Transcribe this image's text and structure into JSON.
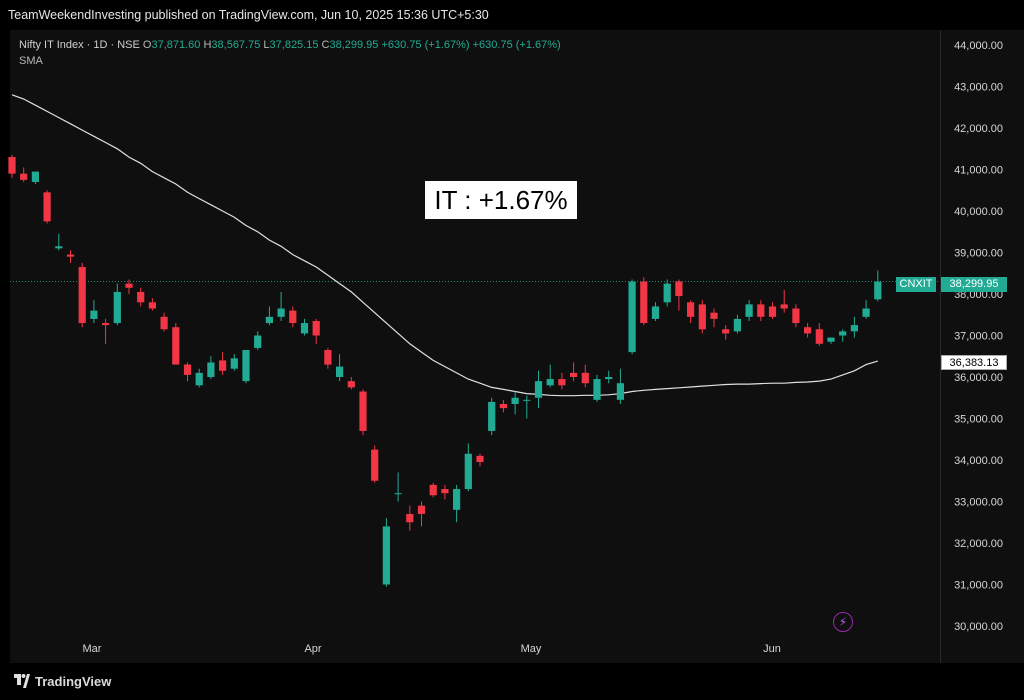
{
  "header": {
    "published": "TeamWeekendInvesting published on TradingView.com, Jun 10, 2025 15:36 UTC+5:30"
  },
  "legend": {
    "symbol": "Nifty IT Index · 1D · NSE",
    "o_label": "O",
    "o": "37,871.60",
    "h_label": "H",
    "h": "38,567.75",
    "l_label": "L",
    "l": "37,825.15",
    "c_label": "C",
    "c": "38,299.95",
    "change": "+630.75 (+1.67%)",
    "change2": "+630.75 (+1.67%)",
    "indicator": "SMA"
  },
  "callout": "IT : +1.67%",
  "price_tags": {
    "symbol": "CNXIT",
    "last": "38,299.95",
    "sma": "36,383.13"
  },
  "footer": {
    "brand": "TradingView"
  },
  "colors": {
    "up": "#22ab94",
    "down": "#f23645",
    "sma": "#e0e0e0",
    "bg": "#0f0f0f"
  },
  "chart_data": {
    "type": "candlestick",
    "y_ticks": [
      30000,
      31000,
      32000,
      33000,
      34000,
      35000,
      36000,
      37000,
      38000,
      39000,
      40000,
      41000,
      42000,
      43000,
      44000
    ],
    "y_tick_labels": [
      "30,000.00",
      "31,000.00",
      "32,000.00",
      "33,000.00",
      "34,000.00",
      "35,000.00",
      "36,000.00",
      "37,000.00",
      "38,000.00",
      "39,000.00",
      "40,000.00",
      "41,000.00",
      "42,000.00",
      "43,000.00",
      "44,000.00"
    ],
    "x_labels": [
      "Mar",
      "Apr",
      "May",
      "Jun"
    ],
    "last_price": 38299.95,
    "candles": [
      {
        "o": 41300,
        "h": 41350,
        "c": 40900,
        "l": 40800
      },
      {
        "o": 40900,
        "h": 41050,
        "c": 40750,
        "l": 40700
      },
      {
        "o": 40700,
        "h": 40850,
        "c": 40950,
        "l": 40650
      },
      {
        "o": 40450,
        "h": 40500,
        "c": 39750,
        "l": 39700
      },
      {
        "o": 39100,
        "h": 39450,
        "c": 39150,
        "l": 39050
      },
      {
        "o": 38950,
        "h": 39050,
        "c": 38900,
        "l": 38750
      },
      {
        "o": 38650,
        "h": 38750,
        "c": 37300,
        "l": 37200
      },
      {
        "o": 37400,
        "h": 37850,
        "c": 37600,
        "l": 37300
      },
      {
        "o": 37300,
        "h": 37400,
        "c": 37250,
        "l": 36800
      },
      {
        "o": 37300,
        "h": 38250,
        "c": 38050,
        "l": 37250
      },
      {
        "o": 38250,
        "h": 38350,
        "c": 38150,
        "l": 38000
      },
      {
        "o": 38050,
        "h": 38150,
        "c": 37800,
        "l": 37700
      },
      {
        "o": 37800,
        "h": 37900,
        "c": 37650,
        "l": 37600
      },
      {
        "o": 37450,
        "h": 37550,
        "c": 37150,
        "l": 37100
      },
      {
        "o": 37200,
        "h": 37300,
        "c": 36300,
        "l": 36300
      },
      {
        "o": 36300,
        "h": 36350,
        "c": 36050,
        "l": 35900
      },
      {
        "o": 35800,
        "h": 36200,
        "c": 36100,
        "l": 35750
      },
      {
        "o": 36000,
        "h": 36500,
        "c": 36350,
        "l": 35950
      },
      {
        "o": 36400,
        "h": 36600,
        "c": 36150,
        "l": 36050
      },
      {
        "o": 36200,
        "h": 36550,
        "c": 36450,
        "l": 36150
      },
      {
        "o": 35900,
        "h": 36600,
        "c": 36650,
        "l": 35850
      },
      {
        "o": 36700,
        "h": 37100,
        "c": 37000,
        "l": 36650
      },
      {
        "o": 37300,
        "h": 37700,
        "c": 37450,
        "l": 37250
      },
      {
        "o": 37450,
        "h": 38050,
        "c": 37650,
        "l": 37350
      },
      {
        "o": 37600,
        "h": 37700,
        "c": 37300,
        "l": 37200
      },
      {
        "o": 37050,
        "h": 37400,
        "c": 37300,
        "l": 37000
      },
      {
        "o": 37350,
        "h": 37400,
        "c": 37000,
        "l": 36800
      },
      {
        "o": 36650,
        "h": 36700,
        "c": 36300,
        "l": 36200
      },
      {
        "o": 36000,
        "h": 36550,
        "c": 36250,
        "l": 35900
      },
      {
        "o": 35900,
        "h": 36000,
        "c": 35750,
        "l": 35700
      },
      {
        "o": 35650,
        "h": 35700,
        "c": 34700,
        "l": 34600
      },
      {
        "o": 34250,
        "h": 34350,
        "c": 33500,
        "l": 33450
      },
      {
        "o": 31000,
        "h": 32600,
        "c": 32400,
        "l": 30950
      },
      {
        "o": 33200,
        "h": 33700,
        "c": 33200,
        "l": 33000
      },
      {
        "o": 32700,
        "h": 32900,
        "c": 32500,
        "l": 32300
      },
      {
        "o": 32900,
        "h": 33000,
        "c": 32700,
        "l": 32400
      },
      {
        "o": 33400,
        "h": 33450,
        "c": 33150,
        "l": 33100
      },
      {
        "o": 33300,
        "h": 33400,
        "c": 33200,
        "l": 33050
      },
      {
        "o": 32800,
        "h": 33400,
        "c": 33300,
        "l": 32500
      },
      {
        "o": 33300,
        "h": 34400,
        "c": 34150,
        "l": 33250
      },
      {
        "o": 34100,
        "h": 34150,
        "c": 33950,
        "l": 33850
      },
      {
        "o": 34700,
        "h": 35500,
        "c": 35400,
        "l": 34600
      },
      {
        "o": 35350,
        "h": 35450,
        "c": 35250,
        "l": 35150
      },
      {
        "o": 35350,
        "h": 35650,
        "c": 35500,
        "l": 35100
      },
      {
        "o": 35450,
        "h": 35550,
        "c": 35450,
        "l": 35000
      },
      {
        "o": 35500,
        "h": 36150,
        "c": 35900,
        "l": 35250
      },
      {
        "o": 35800,
        "h": 36300,
        "c": 35950,
        "l": 35750
      },
      {
        "o": 35950,
        "h": 36100,
        "c": 35800,
        "l": 35700
      },
      {
        "o": 36100,
        "h": 36350,
        "c": 36000,
        "l": 35900
      },
      {
        "o": 36100,
        "h": 36300,
        "c": 35850,
        "l": 35750
      },
      {
        "o": 35450,
        "h": 36050,
        "c": 35950,
        "l": 35400
      },
      {
        "o": 35950,
        "h": 36150,
        "c": 36000,
        "l": 35850
      },
      {
        "o": 35450,
        "h": 36200,
        "c": 35850,
        "l": 35350
      },
      {
        "o": 36600,
        "h": 38350,
        "c": 38300,
        "l": 36550
      },
      {
        "o": 38300,
        "h": 38400,
        "c": 37300,
        "l": 37250
      },
      {
        "o": 37400,
        "h": 37800,
        "c": 37700,
        "l": 37350
      },
      {
        "o": 37800,
        "h": 38350,
        "c": 38250,
        "l": 37700
      },
      {
        "o": 38300,
        "h": 38350,
        "c": 37950,
        "l": 37600
      },
      {
        "o": 37800,
        "h": 37850,
        "c": 37450,
        "l": 37300
      },
      {
        "o": 37750,
        "h": 37850,
        "c": 37150,
        "l": 37050
      },
      {
        "o": 37550,
        "h": 37650,
        "c": 37400,
        "l": 37200
      },
      {
        "o": 37150,
        "h": 37250,
        "c": 37050,
        "l": 36900
      },
      {
        "o": 37100,
        "h": 37500,
        "c": 37400,
        "l": 37050
      },
      {
        "o": 37450,
        "h": 37850,
        "c": 37750,
        "l": 37350
      },
      {
        "o": 37750,
        "h": 37850,
        "c": 37450,
        "l": 37350
      },
      {
        "o": 37700,
        "h": 37800,
        "c": 37450,
        "l": 37400
      },
      {
        "o": 37750,
        "h": 38100,
        "c": 37650,
        "l": 37550
      },
      {
        "o": 37650,
        "h": 37750,
        "c": 37300,
        "l": 37200
      },
      {
        "o": 37200,
        "h": 37300,
        "c": 37050,
        "l": 36950
      },
      {
        "o": 37150,
        "h": 37300,
        "c": 36800,
        "l": 36750
      },
      {
        "o": 36850,
        "h": 36950,
        "c": 36950,
        "l": 36800
      },
      {
        "o": 37000,
        "h": 37150,
        "c": 37100,
        "l": 36850
      },
      {
        "o": 37100,
        "h": 37450,
        "c": 37250,
        "l": 36950
      },
      {
        "o": 37450,
        "h": 37850,
        "c": 37650,
        "l": 37400
      },
      {
        "o": 37871.6,
        "h": 38567.75,
        "c": 38299.95,
        "l": 37825.15
      }
    ],
    "sma": [
      42800,
      42700,
      42550,
      42400,
      42250,
      42100,
      41950,
      41800,
      41650,
      41500,
      41300,
      41150,
      40950,
      40800,
      40650,
      40450,
      40300,
      40150,
      40000,
      39850,
      39650,
      39500,
      39300,
      39150,
      38950,
      38800,
      38650,
      38450,
      38250,
      38050,
      37800,
      37550,
      37300,
      37050,
      36800,
      36600,
      36400,
      36250,
      36100,
      35950,
      35850,
      35750,
      35700,
      35650,
      35600,
      35580,
      35560,
      35550,
      35550,
      35560,
      35560,
      35570,
      35600,
      35650,
      35680,
      35700,
      35720,
      35740,
      35760,
      35780,
      35800,
      35820,
      35830,
      35830,
      35840,
      35850,
      35850,
      35870,
      35880,
      35900,
      35950,
      36050,
      36150,
      36300,
      36383.13
    ],
    "sma_label": "SMA"
  }
}
